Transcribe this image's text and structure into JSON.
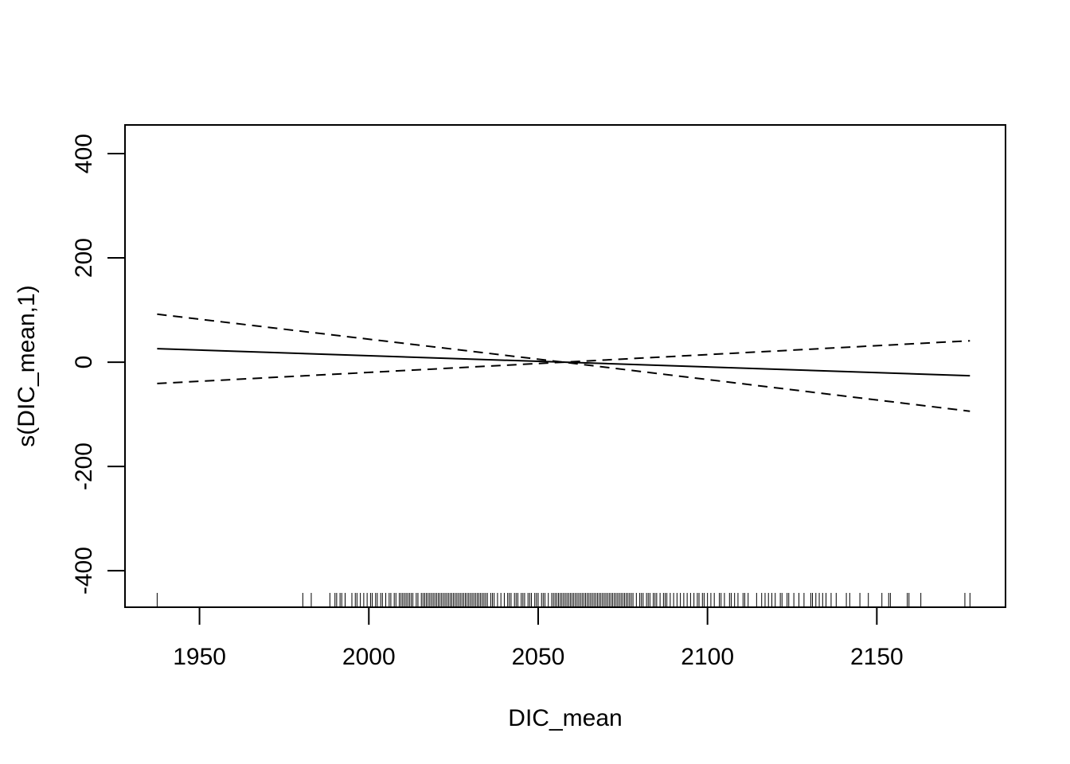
{
  "chart_data": {
    "type": "line",
    "title": "",
    "xlabel": "DIC_mean",
    "ylabel": "s(DIC_mean,1)",
    "xlim": [
      1928,
      2188
    ],
    "ylim": [
      -470,
      455
    ],
    "x_ticks": [
      "1950",
      "2000",
      "2050",
      "2100",
      "2150"
    ],
    "y_ticks": [
      "-400",
      "-200",
      "0",
      "200",
      "400"
    ],
    "grid": false,
    "legend": "none",
    "series": [
      {
        "style": "solid",
        "x": [
          1937.5,
          2177.5
        ],
        "y": [
          26,
          -26
        ]
      },
      {
        "style": "dashed",
        "x": [
          1937.5,
          2057.5,
          2177.5
        ],
        "y": [
          92,
          0,
          -94
        ]
      },
      {
        "style": "dashed",
        "x": [
          1937.5,
          2057.5,
          2177.5
        ],
        "y": [
          -41,
          0,
          41
        ]
      }
    ],
    "rug": [
      1937.5,
      1980.5,
      1983,
      1988.5,
      1990,
      1990.5,
      1991.5,
      1992,
      1993,
      1995,
      1996,
      1996.5,
      1997.5,
      1998.5,
      1999.5,
      2000.5,
      2001,
      2002,
      2002.5,
      2003.5,
      2004,
      2005,
      2006,
      2006.5,
      2007.5,
      2008,
      2009,
      2009.5,
      2010,
      2010.5,
      2011,
      2011.5,
      2012,
      2012.5,
      2013,
      2014,
      2014.5,
      2015.5,
      2016,
      2016.5,
      2017,
      2017.5,
      2018,
      2018.5,
      2019,
      2019.5,
      2020,
      2020.5,
      2021,
      2021.5,
      2022,
      2022.5,
      2023,
      2023.5,
      2024,
      2024.5,
      2025,
      2025.5,
      2026,
      2026.5,
      2027,
      2027.5,
      2028,
      2028.5,
      2029,
      2029.5,
      2030,
      2030.5,
      2031,
      2031.5,
      2032,
      2032.5,
      2033,
      2033.5,
      2034,
      2034.5,
      2035,
      2036,
      2036.5,
      2037,
      2038,
      2039,
      2040,
      2041,
      2041.5,
      2042,
      2043,
      2043.5,
      2044,
      2045,
      2045.5,
      2046,
      2047,
      2047.5,
      2048,
      2049,
      2049.5,
      2050,
      2051,
      2051.5,
      2052,
      2053,
      2054,
      2054.5,
      2055,
      2055.5,
      2056,
      2056.5,
      2057,
      2057.5,
      2058,
      2058.5,
      2059,
      2059.5,
      2060,
      2060.5,
      2061,
      2061.5,
      2062,
      2062.5,
      2063,
      2063.5,
      2064,
      2064.5,
      2065,
      2065.5,
      2066,
      2066.5,
      2067,
      2067.5,
      2068,
      2068.5,
      2069,
      2069.5,
      2070,
      2070.5,
      2071,
      2071.5,
      2072,
      2072.5,
      2073,
      2073.5,
      2074,
      2074.5,
      2075,
      2075.5,
      2076,
      2076.5,
      2077,
      2077.5,
      2078,
      2079,
      2080,
      2080.5,
      2081,
      2082,
      2082.5,
      2083,
      2084,
      2084.5,
      2085,
      2086,
      2087,
      2087.5,
      2088,
      2089,
      2090,
      2091,
      2092,
      2093,
      2094,
      2095,
      2096,
      2097,
      2097.5,
      2098.5,
      2099,
      2100,
      2101,
      2102,
      2103.5,
      2104,
      2105,
      2106.5,
      2107,
      2108,
      2109,
      2110.5,
      2111,
      2112,
      2114.5,
      2116,
      2117,
      2118,
      2119,
      2120,
      2121.5,
      2122,
      2123.5,
      2124,
      2125.5,
      2127,
      2128.5,
      2130.5,
      2131,
      2132,
      2133,
      2134,
      2135,
      2136.5,
      2138,
      2141,
      2142,
      2145,
      2147.5,
      2151.5,
      2153.5,
      2154,
      2159,
      2159.5,
      2163,
      2176,
      2177.5
    ]
  }
}
